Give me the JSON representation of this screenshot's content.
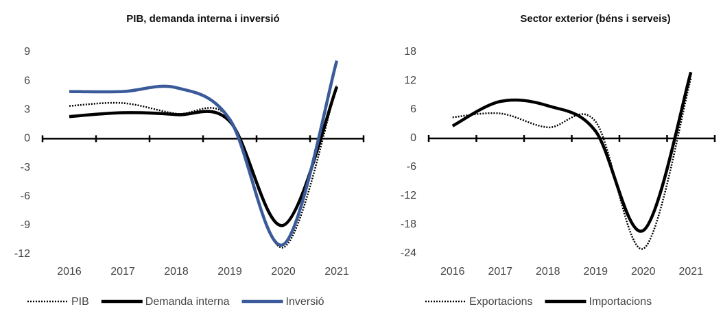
{
  "chart_data": [
    {
      "type": "line",
      "title": "PIB, demanda interna i inversió",
      "categories": [
        "2016",
        "2017",
        "2018",
        "2019",
        "2020",
        "2021"
      ],
      "ylim": [
        -12,
        9
      ],
      "yticks": [
        -12,
        -9,
        -6,
        -3,
        0,
        3,
        6,
        9
      ],
      "series": [
        {
          "name": "PIB",
          "color": "#000000",
          "style": "dotted",
          "values": [
            3.4,
            3.7,
            2.6,
            2.1,
            -11.3,
            5.5
          ]
        },
        {
          "name": "Demanda  interna",
          "color": "#000000",
          "style": "solid",
          "values": [
            2.3,
            2.7,
            2.5,
            1.8,
            -9.0,
            5.4
          ]
        },
        {
          "name": "Inversió",
          "color": "#3b5a9a",
          "style": "solid",
          "values": [
            4.9,
            4.9,
            5.3,
            2.0,
            -11.0,
            8.1
          ]
        }
      ]
    },
    {
      "type": "line",
      "title": "Sector exterior (béns i serveis)",
      "categories": [
        "2016",
        "2017",
        "2018",
        "2019",
        "2020",
        "2021"
      ],
      "ylim": [
        -24,
        18
      ],
      "yticks": [
        -24,
        -18,
        -12,
        -6,
        0,
        6,
        12,
        18
      ],
      "series": [
        {
          "name": "Exportacions",
          "color": "#000000",
          "style": "dotted",
          "values": [
            4.4,
            5.2,
            2.3,
            3.5,
            -23.0,
            12.5
          ]
        },
        {
          "name": "Importacions",
          "color": "#000000",
          "style": "solid",
          "values": [
            2.6,
            7.7,
            6.8,
            1.5,
            -19.2,
            13.8
          ]
        }
      ]
    }
  ]
}
